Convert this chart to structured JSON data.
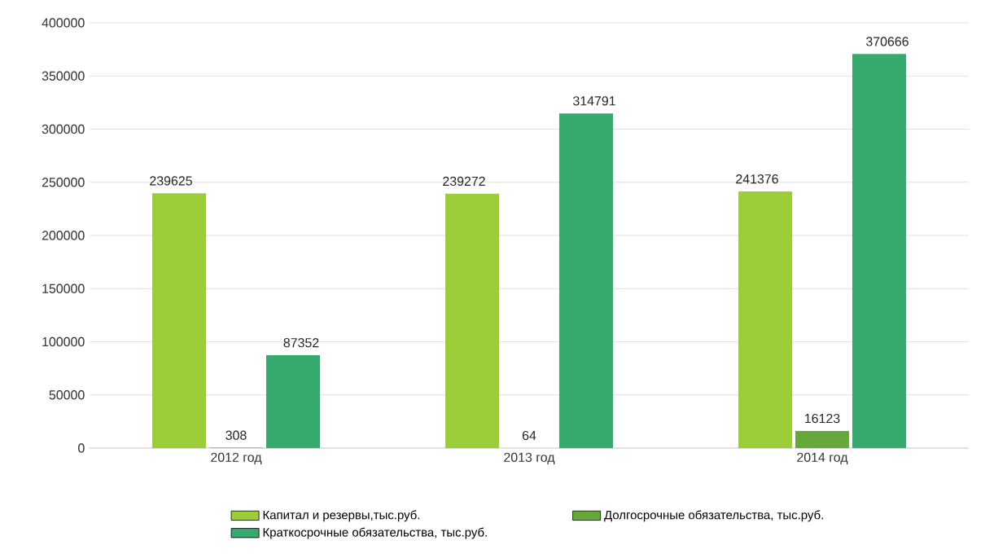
{
  "chart_data": {
    "type": "bar",
    "categories": [
      "2012 год",
      "2013 год",
      "2014 год"
    ],
    "series": [
      {
        "name": "Капитал и резервы,тыс.руб.",
        "color": "#9acd38",
        "values": [
          239625,
          239272,
          241376
        ]
      },
      {
        "name": "Долгосрочные обязательства, тыс.руб.",
        "color": "#66a83a",
        "values": [
          308,
          64,
          16123
        ]
      },
      {
        "name": "Краткосрочные обязательства, тыс.руб.",
        "color": "#35a96e",
        "values": [
          87352,
          314791,
          370666
        ]
      }
    ],
    "ylim": [
      0,
      400000
    ],
    "yticks": [
      0,
      50000,
      100000,
      150000,
      200000,
      250000,
      300000,
      350000,
      400000
    ],
    "grid": "y",
    "legend": "bottom",
    "data_labels": true
  }
}
